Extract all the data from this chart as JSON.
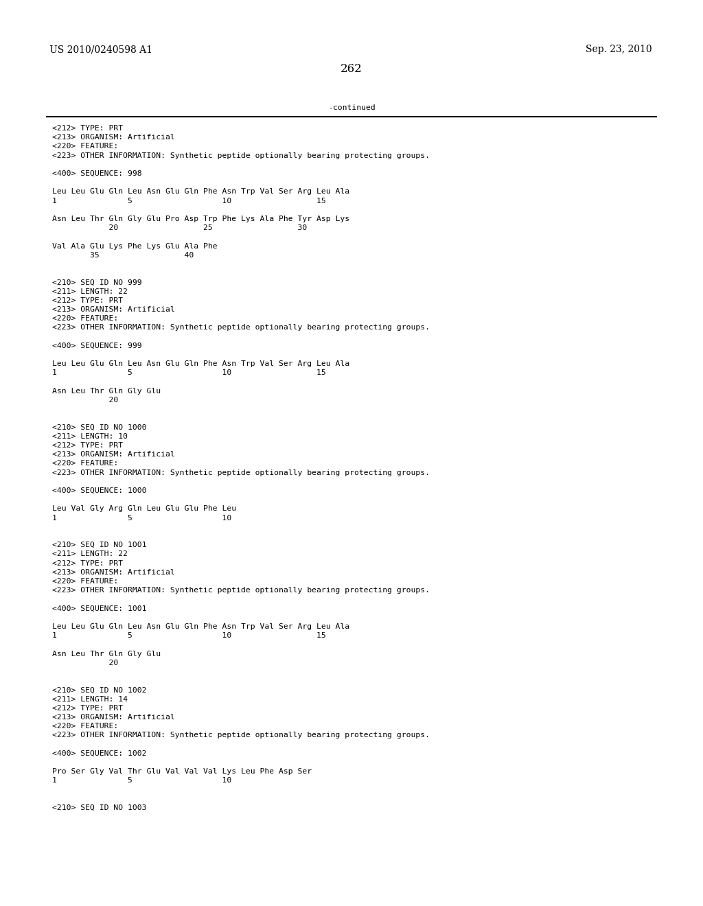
{
  "header_left": "US 2010/0240598 A1",
  "header_right": "Sep. 23, 2010",
  "page_number": "262",
  "continued_label": "-continued",
  "background_color": "#ffffff",
  "text_color": "#000000",
  "font_size_header": 10.0,
  "font_size_page_num": 12.0,
  "font_size_body": 8.2,
  "content": [
    "<212> TYPE: PRT",
    "<213> ORGANISM: Artificial",
    "<220> FEATURE:",
    "<223> OTHER INFORMATION: Synthetic peptide optionally bearing protecting groups.",
    "",
    "<400> SEQUENCE: 998",
    "",
    "Leu Leu Glu Gln Leu Asn Glu Gln Phe Asn Trp Val Ser Arg Leu Ala",
    "1               5                   10                  15",
    "",
    "Asn Leu Thr Gln Gly Glu Pro Asp Trp Phe Lys Ala Phe Tyr Asp Lys",
    "            20                  25                  30",
    "",
    "Val Ala Glu Lys Phe Lys Glu Ala Phe",
    "        35                  40",
    "",
    "",
    "<210> SEQ ID NO 999",
    "<211> LENGTH: 22",
    "<212> TYPE: PRT",
    "<213> ORGANISM: Artificial",
    "<220> FEATURE:",
    "<223> OTHER INFORMATION: Synthetic peptide optionally bearing protecting groups.",
    "",
    "<400> SEQUENCE: 999",
    "",
    "Leu Leu Glu Gln Leu Asn Glu Gln Phe Asn Trp Val Ser Arg Leu Ala",
    "1               5                   10                  15",
    "",
    "Asn Leu Thr Gln Gly Glu",
    "            20",
    "",
    "",
    "<210> SEQ ID NO 1000",
    "<211> LENGTH: 10",
    "<212> TYPE: PRT",
    "<213> ORGANISM: Artificial",
    "<220> FEATURE:",
    "<223> OTHER INFORMATION: Synthetic peptide optionally bearing protecting groups.",
    "",
    "<400> SEQUENCE: 1000",
    "",
    "Leu Val Gly Arg Gln Leu Glu Glu Phe Leu",
    "1               5                   10",
    "",
    "",
    "<210> SEQ ID NO 1001",
    "<211> LENGTH: 22",
    "<212> TYPE: PRT",
    "<213> ORGANISM: Artificial",
    "<220> FEATURE:",
    "<223> OTHER INFORMATION: Synthetic peptide optionally bearing protecting groups.",
    "",
    "<400> SEQUENCE: 1001",
    "",
    "Leu Leu Glu Gln Leu Asn Glu Gln Phe Asn Trp Val Ser Arg Leu Ala",
    "1               5                   10                  15",
    "",
    "Asn Leu Thr Gln Gly Glu",
    "            20",
    "",
    "",
    "<210> SEQ ID NO 1002",
    "<211> LENGTH: 14",
    "<212> TYPE: PRT",
    "<213> ORGANISM: Artificial",
    "<220> FEATURE:",
    "<223> OTHER INFORMATION: Synthetic peptide optionally bearing protecting groups.",
    "",
    "<400> SEQUENCE: 1002",
    "",
    "Pro Ser Gly Val Thr Glu Val Val Val Lys Leu Phe Asp Ser",
    "1               5                   10",
    "",
    "",
    "<210> SEQ ID NO 1003"
  ]
}
